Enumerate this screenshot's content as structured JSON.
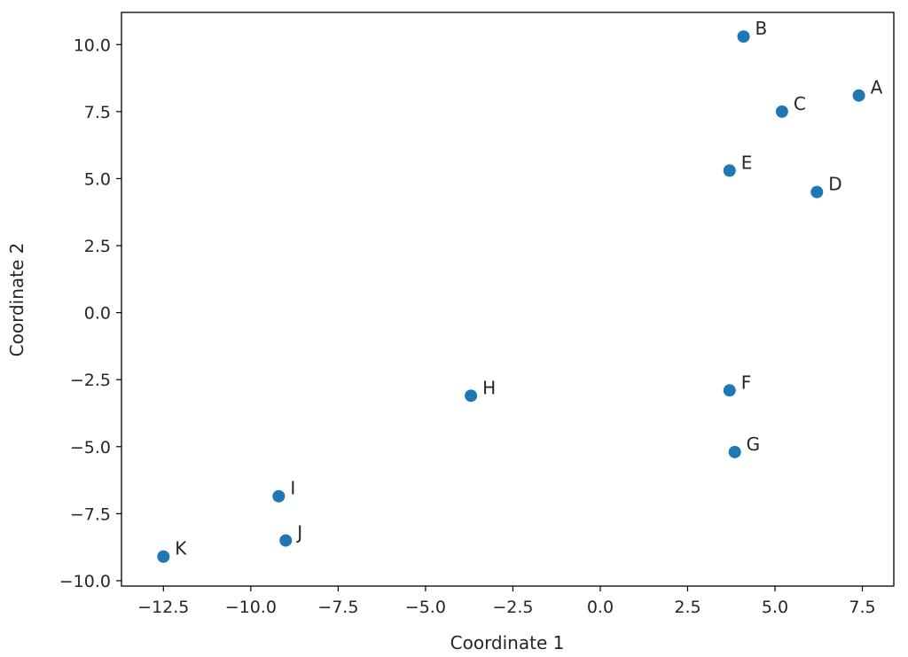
{
  "chart_data": {
    "type": "scatter",
    "title": "",
    "xlabel": "Coordinate 1",
    "ylabel": "Coordinate 2",
    "xlim": [
      -13.7,
      8.4
    ],
    "ylim": [
      -10.2,
      11.2
    ],
    "xticks": [
      -12.5,
      -10.0,
      -7.5,
      -5.0,
      -2.5,
      0.0,
      2.5,
      5.0,
      7.5
    ],
    "xtick_labels": [
      "−12.5",
      "−10.0",
      "−7.5",
      "−5.0",
      "−2.5",
      "0.0",
      "2.5",
      "5.0",
      "7.5"
    ],
    "yticks": [
      -10.0,
      -7.5,
      -5.0,
      -2.5,
      0.0,
      2.5,
      5.0,
      7.5,
      10.0
    ],
    "ytick_labels": [
      "−10.0",
      "−7.5",
      "−5.0",
      "−2.5",
      "0.0",
      "2.5",
      "5.0",
      "7.5",
      "10.0"
    ],
    "grid": false,
    "legend": false,
    "marker_color": "#1f77b4",
    "points": [
      {
        "label": "A",
        "x": 7.4,
        "y": 8.1
      },
      {
        "label": "B",
        "x": 4.1,
        "y": 10.3
      },
      {
        "label": "C",
        "x": 5.2,
        "y": 7.5
      },
      {
        "label": "D",
        "x": 6.2,
        "y": 4.5
      },
      {
        "label": "E",
        "x": 3.7,
        "y": 5.3
      },
      {
        "label": "F",
        "x": 3.7,
        "y": -2.9
      },
      {
        "label": "G",
        "x": 3.85,
        "y": -5.2
      },
      {
        "label": "H",
        "x": -3.7,
        "y": -3.1
      },
      {
        "label": "I",
        "x": -9.2,
        "y": -6.85
      },
      {
        "label": "J",
        "x": -9.0,
        "y": -8.5
      },
      {
        "label": "K",
        "x": -12.5,
        "y": -9.1
      }
    ]
  }
}
